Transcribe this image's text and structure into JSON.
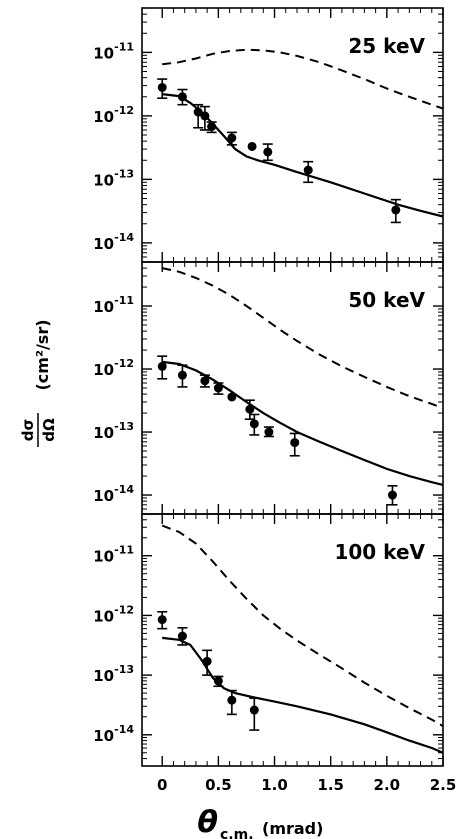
{
  "chart_data": {
    "type": "scatter",
    "xlabel": "θc.m. (mrad)",
    "xlabel_main": "θ",
    "xlabel_sub": "c.m.",
    "xlabel_unit": "(mrad)",
    "ylabel": "dσ/dΩ (cm²/sr)",
    "ylabel_num": "dσ",
    "ylabel_den": "dΩ",
    "ylabel_unit": "(cm²/sr)",
    "x_ticks": [
      "0",
      "0.5",
      "1.0",
      "1.5",
      "2.0",
      "2.5"
    ],
    "x_tick_values": [
      0,
      0.5,
      1.0,
      1.5,
      2.0,
      2.5
    ],
    "xlim": [
      -0.18,
      2.5
    ],
    "y_scale": "log",
    "y_ticks": [
      {
        "base": "10",
        "exp": "-11",
        "value": 1e-11
      },
      {
        "base": "10",
        "exp": "-12",
        "value": 1e-12
      },
      {
        "base": "10",
        "exp": "-13",
        "value": 1e-13
      },
      {
        "base": "10",
        "exp": "-14",
        "value": 1e-14
      }
    ],
    "panels": [
      {
        "label": "25 keV",
        "ylim": [
          5e-15,
          5e-11
        ],
        "points": [
          {
            "x": 0.0,
            "y": 2.8e-12,
            "lo": 1.9e-12,
            "hi": 3.8e-12
          },
          {
            "x": 0.18,
            "y": 2e-12,
            "lo": 1.5e-12,
            "hi": 2.6e-12
          },
          {
            "x": 0.32,
            "y": 1.15e-12,
            "lo": 6.5e-13,
            "hi": 1.5e-12
          },
          {
            "x": 0.38,
            "y": 1e-12,
            "lo": 6e-13,
            "hi": 1.4e-12
          },
          {
            "x": 0.44,
            "y": 6.8e-13,
            "lo": 5.5e-13,
            "hi": 8e-13
          },
          {
            "x": 0.62,
            "y": 4.5e-13,
            "lo": 3.5e-13,
            "hi": 5.5e-13
          },
          {
            "x": 0.8,
            "y": 3.3e-13
          },
          {
            "x": 0.94,
            "y": 2.7e-13,
            "lo": 2e-13,
            "hi": 3.6e-13
          },
          {
            "x": 1.3,
            "y": 1.4e-13,
            "lo": 9e-14,
            "hi": 1.9e-13
          },
          {
            "x": 2.08,
            "y": 3.3e-14,
            "lo": 2.1e-14,
            "hi": 4.8e-14
          }
        ],
        "solid": {
          "x": [
            0.0,
            0.15,
            0.25,
            0.35,
            0.45,
            0.55,
            0.65,
            0.75,
            0.85,
            1.0,
            1.2,
            1.5,
            1.8,
            2.1,
            2.3,
            2.5
          ],
          "y": [
            2.2e-12,
            2.05e-12,
            1.6e-12,
            1.15e-12,
            7.5e-13,
            4.8e-13,
            3e-13,
            2.3e-13,
            2e-13,
            1.7e-13,
            1.3e-13,
            9e-14,
            6e-14,
            4e-14,
            3.2e-14,
            2.6e-14
          ]
        },
        "dashed": {
          "x": [
            0.0,
            0.15,
            0.3,
            0.45,
            0.6,
            0.75,
            0.9,
            1.05,
            1.2,
            1.4,
            1.6,
            1.8,
            2.0,
            2.2,
            2.4,
            2.5
          ],
          "y": [
            6.5e-12,
            7e-12,
            8e-12,
            9.5e-12,
            1.05e-11,
            1.1e-11,
            1.08e-11,
            1e-11,
            8.8e-12,
            7e-12,
            5.2e-12,
            3.8e-12,
            2.7e-12,
            2e-12,
            1.5e-12,
            1.3e-12
          ]
        }
      },
      {
        "label": "50 keV",
        "ylim": [
          5e-15,
          5e-11
        ],
        "points": [
          {
            "x": 0.0,
            "y": 1.1e-12,
            "lo": 7e-13,
            "hi": 1.6e-12
          },
          {
            "x": 0.18,
            "y": 8e-13,
            "lo": 5.2e-13,
            "hi": 1.15e-12
          },
          {
            "x": 0.38,
            "y": 6.5e-13,
            "lo": 5.2e-13,
            "hi": 8e-13
          },
          {
            "x": 0.5,
            "y": 5e-13,
            "lo": 4e-13,
            "hi": 6e-13
          },
          {
            "x": 0.62,
            "y": 3.6e-13
          },
          {
            "x": 0.78,
            "y": 2.3e-13,
            "lo": 1.6e-13,
            "hi": 3.2e-13
          },
          {
            "x": 0.82,
            "y": 1.35e-13,
            "lo": 9e-14,
            "hi": 1.9e-13
          },
          {
            "x": 0.95,
            "y": 1e-13,
            "lo": 8.5e-14,
            "hi": 1.2e-13
          },
          {
            "x": 1.18,
            "y": 6.8e-14,
            "lo": 4.2e-14,
            "hi": 9.5e-14
          },
          {
            "x": 2.05,
            "y": 1e-14,
            "lo": 7e-15,
            "hi": 1.4e-14
          }
        ],
        "solid": {
          "x": [
            0.0,
            0.15,
            0.3,
            0.45,
            0.6,
            0.75,
            0.9,
            1.05,
            1.2,
            1.4,
            1.6,
            1.8,
            2.0,
            2.2,
            2.4,
            2.5
          ],
          "y": [
            1.3e-12,
            1.2e-12,
            9.5e-13,
            6.8e-13,
            4.6e-13,
            3e-13,
            2e-13,
            1.4e-13,
            1e-13,
            7e-14,
            5e-14,
            3.6e-14,
            2.6e-14,
            2e-14,
            1.6e-14,
            1.45e-14
          ]
        },
        "dashed": {
          "x": [
            0.0,
            0.15,
            0.3,
            0.45,
            0.6,
            0.75,
            0.9,
            1.05,
            1.2,
            1.4,
            1.6,
            1.8,
            2.0,
            2.2,
            2.4,
            2.5
          ],
          "y": [
            4e-11,
            3.5e-11,
            2.8e-11,
            2.1e-11,
            1.5e-11,
            1e-11,
            6.5e-12,
            4.2e-12,
            2.8e-12,
            1.7e-12,
            1.1e-12,
            7.5e-13,
            5.2e-13,
            3.7e-13,
            2.8e-13,
            2.4e-13
          ]
        }
      },
      {
        "label": "100 keV",
        "ylim": [
          3e-15,
          5e-11
        ],
        "points": [
          {
            "x": 0.0,
            "y": 8.5e-13,
            "lo": 6e-13,
            "hi": 1.15e-12
          },
          {
            "x": 0.18,
            "y": 4.5e-13,
            "lo": 3.2e-13,
            "hi": 6.2e-13
          },
          {
            "x": 0.4,
            "y": 1.7e-13,
            "lo": 1e-13,
            "hi": 2.6e-13
          },
          {
            "x": 0.5,
            "y": 8e-14,
            "lo": 6.5e-14,
            "hi": 9.5e-14
          },
          {
            "x": 0.62,
            "y": 3.8e-14,
            "lo": 2.2e-14,
            "hi": 5.5e-14
          },
          {
            "x": 0.82,
            "y": 2.6e-14,
            "lo": 1.2e-14,
            "hi": 4.1e-14
          }
        ],
        "solid": {
          "x": [
            0.0,
            0.15,
            0.25,
            0.35,
            0.45,
            0.55,
            0.65,
            0.8,
            1.0,
            1.2,
            1.5,
            1.8,
            2.0,
            2.2,
            2.4,
            2.5
          ],
          "y": [
            4.2e-13,
            3.9e-13,
            3.2e-13,
            1.8e-13,
            9e-14,
            6e-14,
            5e-14,
            4.3e-14,
            3.6e-14,
            3e-14,
            2.2e-14,
            1.5e-14,
            1.1e-14,
            8e-15,
            6e-15,
            5e-15
          ]
        },
        "dashed": {
          "x": [
            0.0,
            0.15,
            0.3,
            0.45,
            0.6,
            0.75,
            0.9,
            1.05,
            1.2,
            1.4,
            1.6,
            1.8,
            2.0,
            2.2,
            2.4,
            2.5
          ],
          "y": [
            3.2e-11,
            2.5e-11,
            1.6e-11,
            8e-12,
            3.8e-12,
            1.9e-12,
            1e-12,
            6e-13,
            3.8e-13,
            2.2e-13,
            1.3e-13,
            7.5e-14,
            4.5e-14,
            2.8e-14,
            1.8e-14,
            1.4e-14
          ]
        }
      }
    ]
  }
}
